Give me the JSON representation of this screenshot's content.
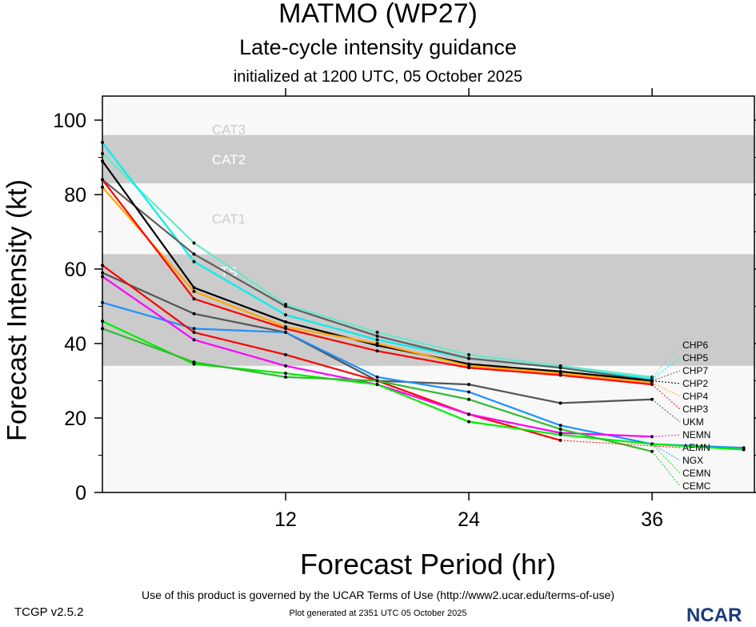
{
  "header": {
    "title": "MATMO (WP27)",
    "subtitle": "Late-cycle intensity guidance",
    "initialized": "initialized at 1200 UTC, 05 October 2025"
  },
  "footer": {
    "version": "TCGP v2.5.2",
    "terms": "Use of this product is governed by the UCAR Terms of Use (http://www2.ucar.edu/terms-of-use)",
    "generated": "Plot generated at 2351 UTC   05 October 2025",
    "logo": "NCAR"
  },
  "chart_data": {
    "type": "line",
    "xlabel": "Forecast Period (hr)",
    "ylabel": "Forecast Intensity (kt)",
    "xlim": [
      0,
      42.7
    ],
    "ylim": [
      0,
      100
    ],
    "xticks": [
      12,
      24,
      36
    ],
    "yticks": [
      0,
      20,
      40,
      60,
      80,
      100
    ],
    "bands": [
      {
        "label": "CAT3",
        "from": 96,
        "to": 113,
        "color": "#f8f8f8"
      },
      {
        "label": "CAT2",
        "from": 83,
        "to": 96,
        "color": "#cbcbcb"
      },
      {
        "label": "CAT1",
        "from": 64,
        "to": 83,
        "color": "#f8f8f8"
      },
      {
        "label": "TS",
        "from": 34,
        "to": 64,
        "color": "#cbcbcb"
      },
      {
        "label": "",
        "from": 0,
        "to": 34,
        "color": "#f8f8f8"
      }
    ],
    "x": [
      0,
      6,
      12,
      18,
      24,
      30,
      36,
      42
    ],
    "series": [
      {
        "name": "CHP6",
        "color": "#66e8c8",
        "values": [
          91,
          67,
          50.5,
          43,
          37,
          34,
          31,
          null
        ]
      },
      {
        "name": "CHP5",
        "color": "#00eeee",
        "values": [
          94,
          62,
          47.7,
          41,
          36,
          33.5,
          30.5,
          null
        ]
      },
      {
        "name": "CHP7",
        "color": "#606060",
        "values": [
          84,
          64,
          50,
          42,
          36,
          33.5,
          30,
          null
        ]
      },
      {
        "name": "CHP2",
        "color": "#000000",
        "values": [
          89,
          55,
          45.8,
          39.5,
          34.5,
          32.5,
          30,
          null
        ]
      },
      {
        "name": "CHP4",
        "color": "#ffa500",
        "values": [
          82,
          54,
          44.5,
          40,
          34,
          32,
          29.5,
          null
        ]
      },
      {
        "name": "CHP3",
        "color": "#ff0000",
        "values": [
          84,
          52,
          44,
          38,
          33.5,
          31.5,
          29,
          null
        ]
      },
      {
        "name": "UKM",
        "color": "#555555",
        "values": [
          59,
          48,
          43,
          30,
          29,
          24,
          25,
          null
        ]
      },
      {
        "name": "NGX",
        "color": "#1e90ff",
        "values": [
          51,
          44,
          43,
          31,
          27,
          18,
          13,
          12
        ]
      },
      {
        "name": "AEMN",
        "color": "#ff0000",
        "values": [
          61,
          43,
          37,
          30,
          21,
          14,
          null,
          null
        ]
      },
      {
        "name": "NEMN",
        "color": "#ff00ff",
        "values": [
          58,
          41,
          34,
          29,
          21,
          16,
          15,
          null
        ]
      },
      {
        "name": "CEMN",
        "color": "#00ee00",
        "values": [
          46,
          34.5,
          32,
          29,
          19,
          15.5,
          13,
          11.5
        ]
      },
      {
        "name": "CEMC",
        "color": "#33bb33",
        "values": [
          44,
          35,
          31,
          30,
          25,
          17,
          11,
          null
        ]
      }
    ]
  }
}
